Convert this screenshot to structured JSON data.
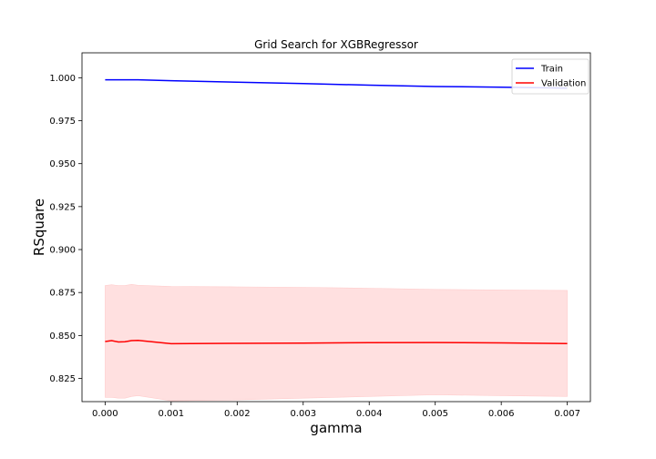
{
  "chart_data": {
    "type": "line",
    "title": "Grid Search for XGBRegressor",
    "xlabel": "gamma",
    "ylabel": "RSquare",
    "xlim": [
      -0.00035,
      0.00735
    ],
    "ylim": [
      0.8115,
      1.0145
    ],
    "xticks": [
      0.0,
      0.001,
      0.002,
      0.003,
      0.004,
      0.005,
      0.006,
      0.007
    ],
    "xtick_labels": [
      "0.000",
      "0.001",
      "0.002",
      "0.003",
      "0.004",
      "0.005",
      "0.006",
      "0.007"
    ],
    "yticks": [
      0.825,
      0.85,
      0.875,
      0.9,
      0.925,
      0.95,
      0.975,
      1.0
    ],
    "ytick_labels": [
      "0.825",
      "0.850",
      "0.875",
      "0.900",
      "0.925",
      "0.950",
      "0.975",
      "1.000"
    ],
    "grid": false,
    "legend_position": "top-right",
    "x": [
      0.0,
      0.0001,
      0.0002,
      0.0003,
      0.0004,
      0.0005,
      0.001,
      0.002,
      0.003,
      0.004,
      0.005,
      0.006,
      0.007
    ],
    "series": [
      {
        "name": "Train",
        "color": "#0000ff",
        "values": [
          0.9988,
          0.9988,
          0.9988,
          0.9988,
          0.9988,
          0.9988,
          0.9983,
          0.9974,
          0.9966,
          0.9957,
          0.9949,
          0.9945,
          0.994
        ],
        "band_lower": [
          0.9988,
          0.9988,
          0.9988,
          0.9988,
          0.9988,
          0.9988,
          0.9983,
          0.9974,
          0.9966,
          0.9957,
          0.9949,
          0.9945,
          0.994
        ],
        "band_upper": [
          0.9988,
          0.9988,
          0.9988,
          0.9988,
          0.9988,
          0.9988,
          0.9983,
          0.9974,
          0.9966,
          0.9957,
          0.9949,
          0.9945,
          0.994
        ]
      },
      {
        "name": "Validation",
        "color": "#ff0000",
        "band_color": "#ffe0e0",
        "values": [
          0.8465,
          0.847,
          0.8462,
          0.8463,
          0.847,
          0.8471,
          0.8452,
          0.8454,
          0.8456,
          0.8458,
          0.8459,
          0.8457,
          0.8453
        ],
        "band_lower": [
          0.814,
          0.814,
          0.8135,
          0.8135,
          0.8145,
          0.815,
          0.812,
          0.8125,
          0.8135,
          0.8145,
          0.8155,
          0.815,
          0.8145
        ],
        "band_upper": [
          0.879,
          0.8795,
          0.879,
          0.879,
          0.8797,
          0.8792,
          0.8785,
          0.8783,
          0.878,
          0.8775,
          0.8768,
          0.8765,
          0.8762
        ]
      }
    ]
  }
}
